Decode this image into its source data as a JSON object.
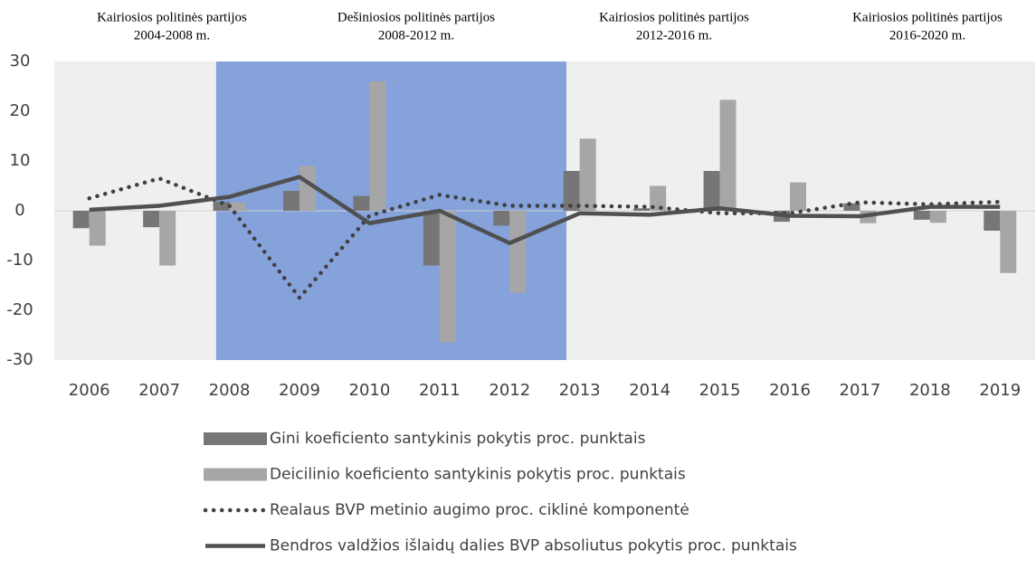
{
  "chart_data": {
    "type": "bar",
    "categories": [
      "2006",
      "2007",
      "2008",
      "2009",
      "2010",
      "2011",
      "2012",
      "2013",
      "2014",
      "2015",
      "2016",
      "2017",
      "2018",
      "2019"
    ],
    "series": [
      {
        "name": "Gini koeficiento santykinis pokytis proc. punktais",
        "type": "bar",
        "color": "#767676",
        "values": [
          -3.5,
          -3.3,
          1.8,
          4,
          3,
          -11,
          -3,
          8,
          0.5,
          8,
          -2.2,
          1.5,
          -1.8,
          -4
        ]
      },
      {
        "name": "Deicilinio koeficiento santykinis pokytis proc. punktais",
        "type": "bar",
        "color": "#a6a6a6",
        "values": [
          -7,
          -11,
          1.7,
          9,
          26,
          -26.5,
          -16.5,
          14.5,
          5,
          22.3,
          5.7,
          -2.5,
          -2.4,
          -12.5
        ]
      },
      {
        "name": "Realaus BVP metinio augimo proc. ciklinė komponentė",
        "type": "line",
        "style": "dotted",
        "color": "#404040",
        "values": [
          2.5,
          6.5,
          1,
          -17.5,
          -1,
          3.2,
          1,
          1,
          0.8,
          -0.5,
          -0.5,
          1.7,
          1.3,
          1.8
        ]
      },
      {
        "name": "Bendros valdžios išlaidų dalies BVP absoliutus pokytis proc. punktais",
        "type": "line",
        "style": "solid",
        "color": "#505050",
        "values": [
          0.2,
          1,
          2.8,
          6.8,
          -2.5,
          0,
          -6.5,
          -0.5,
          -0.8,
          0.5,
          -1,
          -1.1,
          0.8,
          0.8
        ]
      }
    ],
    "ylim": [
      -30,
      30
    ],
    "yticks": [
      -30,
      -20,
      -10,
      0,
      10,
      20,
      30
    ],
    "highlight": {
      "from": "2008",
      "to": "2012",
      "color": "#85a2db"
    },
    "annotations": [
      {
        "lines": [
          "Kairiosios politinės partijos",
          "2004-2008 m."
        ]
      },
      {
        "lines": [
          "Dešiniosios politinės partijos",
          "2008-2012 m."
        ]
      },
      {
        "lines": [
          "Kairiosios politinės partijos",
          "2012-2016 m."
        ]
      },
      {
        "lines": [
          "Kairiosios politinės partijos",
          "2016-2020 m."
        ]
      }
    ],
    "legend": "bottom"
  }
}
